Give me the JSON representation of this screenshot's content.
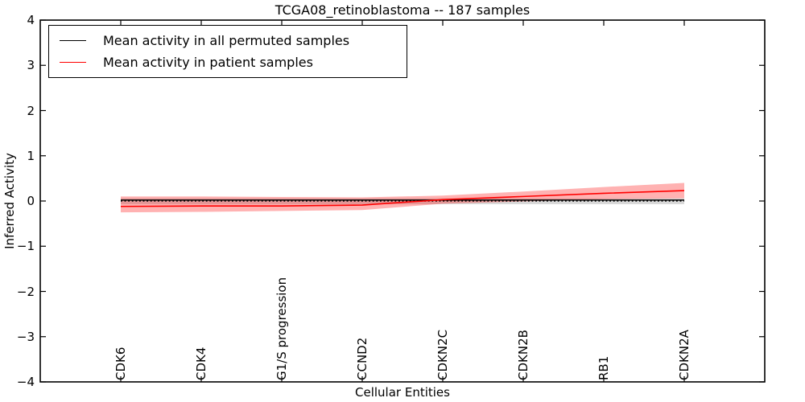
{
  "chart_data": {
    "type": "line",
    "title": "TCGA08_retinoblastoma -- 187 samples",
    "xlabel": "Cellular Entities",
    "ylabel": "Inferred Activity",
    "categories": [
      "CDK6",
      "CDK4",
      "G1/S progression",
      "CCND2",
      "CDKN2C",
      "CDKN2B",
      "RB1",
      "CDKN2A"
    ],
    "x": [
      0,
      1,
      2,
      3,
      4,
      5,
      6,
      7
    ],
    "xlim": [
      -1,
      8
    ],
    "ylim": [
      -4,
      4
    ],
    "y_ticks": [
      4,
      3,
      2,
      1,
      0,
      -1,
      -2,
      -3,
      -4
    ],
    "y_tick_labels": [
      "4",
      "3",
      "2",
      "1",
      "0",
      "−1",
      "−2",
      "−3",
      "−4"
    ],
    "grid": false,
    "legend_position": "upper left",
    "zero_line": {
      "y": 0,
      "style": "dotted",
      "color": "#000000"
    },
    "series": [
      {
        "name": "Mean activity in all permuted samples",
        "color": "#000000",
        "values": [
          0.02,
          0.02,
          0.02,
          0.02,
          0.02,
          0.02,
          0.02,
          0.02
        ]
      },
      {
        "name": "Mean activity in patient samples",
        "color": "#ff0000",
        "values": [
          -0.12,
          -0.11,
          -0.11,
          -0.09,
          0.03,
          0.1,
          0.17,
          0.23
        ]
      }
    ],
    "bands": [
      {
        "name": "permuted-confidence-band",
        "color": "#808080",
        "alpha": 0.3,
        "upper": [
          0.06,
          0.06,
          0.06,
          0.06,
          0.06,
          0.06,
          0.06,
          0.06
        ],
        "lower": [
          -0.07,
          -0.07,
          -0.07,
          -0.07,
          -0.07,
          -0.07,
          -0.07,
          -0.07
        ]
      },
      {
        "name": "patient-confidence-band",
        "color": "#ff0000",
        "alpha": 0.3,
        "upper": [
          0.1,
          0.1,
          0.09,
          0.08,
          0.12,
          0.21,
          0.31,
          0.4
        ],
        "lower": [
          -0.25,
          -0.24,
          -0.22,
          -0.2,
          -0.06,
          -0.01,
          0.04,
          0.06
        ]
      }
    ]
  }
}
